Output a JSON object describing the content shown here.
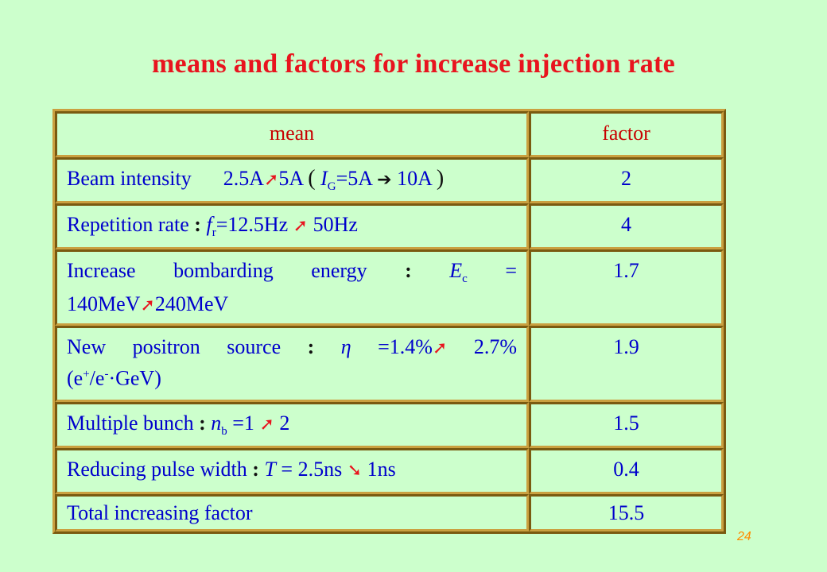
{
  "title": "means and factors for increase injection rate",
  "table": {
    "header": {
      "mean": "mean",
      "factor": "factor"
    },
    "rows": [
      {
        "beam_label": "Beam intensity",
        "beam_from": "2.5A",
        "beam_to": "5A",
        "ig_symbol": "I",
        "ig_sub": "G",
        "ig_from": "=5A",
        "ig_to": "10A",
        "factor": "2"
      },
      {
        "label": "Repetition rate",
        "sym": "f",
        "sub": "r",
        "from": "=12.5Hz",
        "to": "50Hz",
        "factor": "4"
      },
      {
        "line1_a": "Increase",
        "line1_b": "bombarding",
        "line1_c": "energy",
        "sym": "E",
        "sub": "c",
        "eq": "=",
        "from": "140MeV",
        "to": "240MeV",
        "factor": "1.7"
      },
      {
        "line1_a": "New",
        "line1_b": "positron",
        "line1_c": "source",
        "sym": "η",
        "from": "=1.4%",
        "to": "2.7%",
        "unit_pre": "(e",
        "unit_sup1": "+",
        "unit_mid": "/e",
        "unit_sup2": "-",
        "unit_post": "·GeV)",
        "factor": "1.9"
      },
      {
        "label": "Multiple bunch",
        "sym": "n",
        "sub": "b",
        "from": "=1",
        "to": "2",
        "factor": "1.5"
      },
      {
        "label": "Reducing pulse width",
        "sym": "T",
        "from": "= 2.5ns",
        "to": "1ns",
        "factor": "0.4"
      },
      {
        "label": "Total increasing factor",
        "factor": "15.5"
      }
    ]
  },
  "symbols": {
    "arrow_up": "➚",
    "arrow_right": "➔",
    "arrow_down": "➘",
    "colon": ":",
    "paren_open": "(",
    "paren_close": ")"
  },
  "page_number": "24",
  "colors": {
    "background": "#ccffcc",
    "title": "#e8141e",
    "text": "#0000cc",
    "header": "#c80000",
    "arrow": "#e8141e",
    "page_number": "#ff8c00"
  }
}
